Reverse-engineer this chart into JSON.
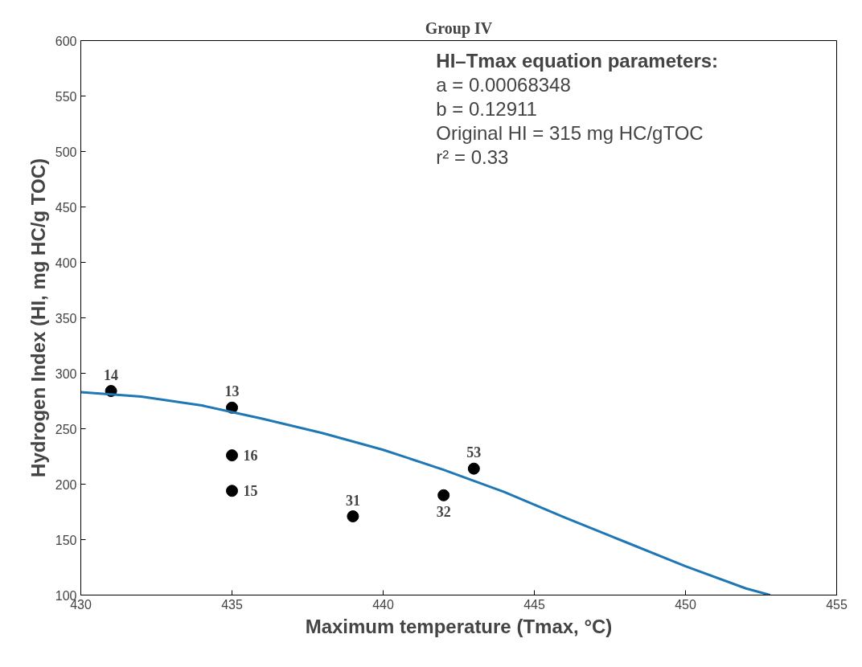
{
  "chart_data": {
    "type": "scatter",
    "title": "Group IV",
    "xlabel": "Maximum temperature (Tmax, °C)",
    "ylabel": "Hydrogen Index (HI, mg HC/g TOC)",
    "xlim": [
      430,
      455
    ],
    "xticks": [
      430,
      435,
      440,
      445,
      450,
      455
    ],
    "ylim": [
      100,
      600
    ],
    "yticks": [
      100,
      150,
      200,
      250,
      300,
      350,
      400,
      450,
      500,
      550,
      600
    ],
    "grid": false,
    "marker": "circle",
    "series": [
      {
        "color": "#000000",
        "x": [
          431,
          435,
          435,
          435,
          439,
          442,
          443
        ],
        "values": [
          284,
          269,
          226,
          194,
          171,
          190,
          214
        ]
      },
      {
        "type": "line",
        "color": "#1f77b4",
        "marker": "none",
        "line_style": "solid",
        "x": [
          430,
          432,
          434,
          436,
          438,
          440,
          442,
          444,
          446,
          448,
          450,
          452,
          452.8
        ],
        "values": [
          283,
          279,
          271,
          259,
          246,
          231,
          213,
          193,
          170,
          148,
          126,
          106,
          100
        ]
      }
    ],
    "annotations": [
      "HI–Tmax equation parameters:",
      "a = 0.00068348",
      "b = 0.12911",
      "Original HI = 315 mg HC/gTOC",
      "r² = 0.33",
      {
        "text": "14",
        "x": 431,
        "y": 284
      },
      {
        "text": "13",
        "x": 435,
        "y": 269
      },
      {
        "text": "16",
        "x": 435,
        "y": 226
      },
      {
        "text": "15",
        "x": 435,
        "y": 194
      },
      {
        "text": "31",
        "x": 439,
        "y": 171
      },
      {
        "text": "32",
        "x": 442,
        "y": 190
      },
      {
        "text": "53",
        "x": 443,
        "y": 214
      }
    ]
  }
}
